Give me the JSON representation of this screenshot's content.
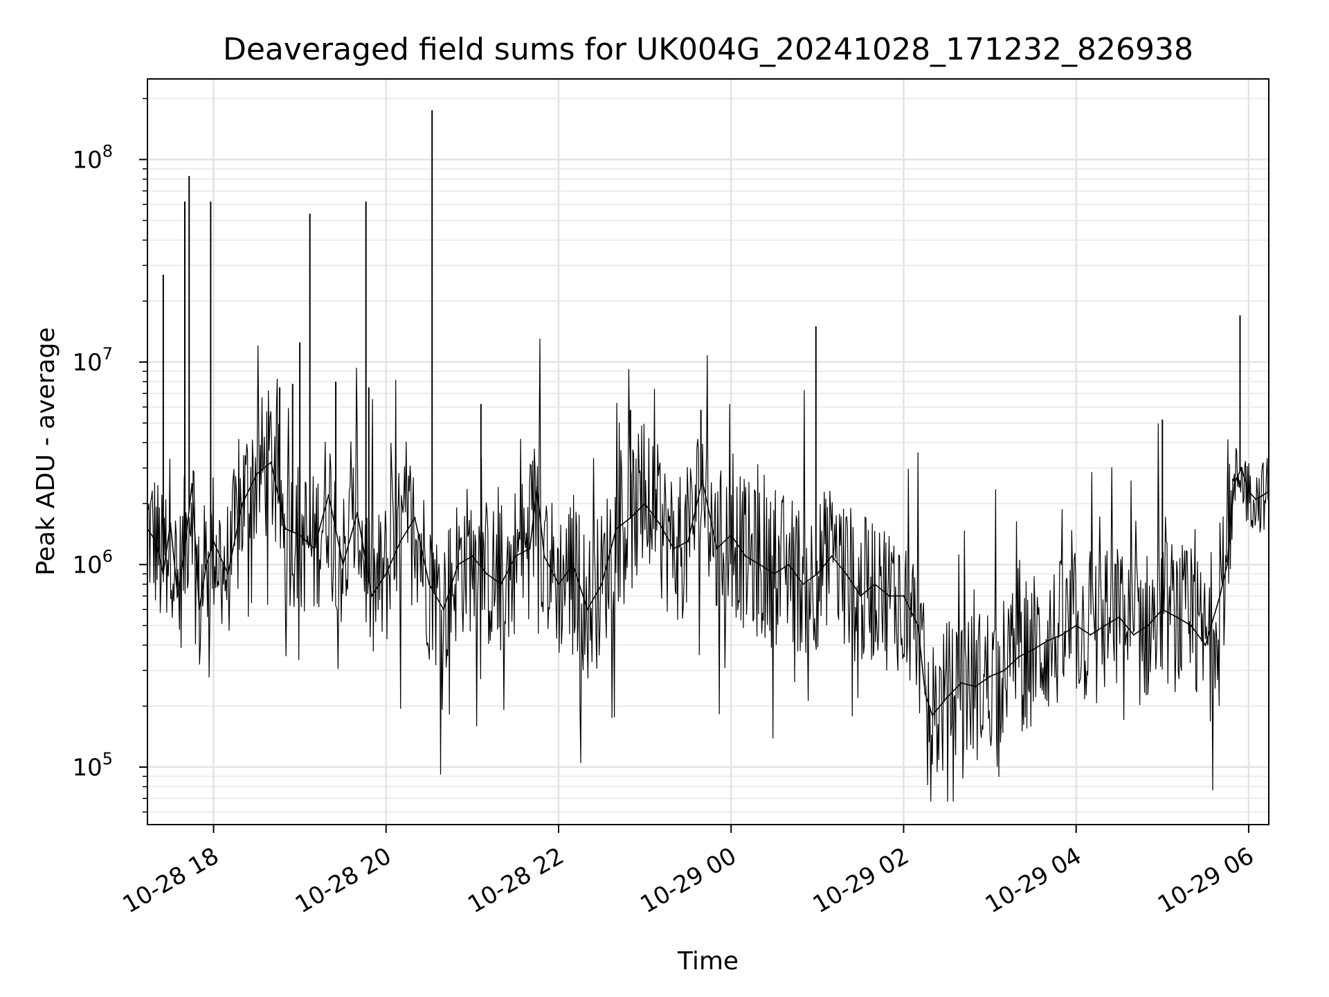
{
  "chart_data": {
    "type": "line",
    "title": "Deaveraged field sums for UK004G_20241028_171232_826938",
    "xlabel": "Time",
    "ylabel": "Peak ADU - average",
    "yscale": "log",
    "xlim": [
      "2024-10-28 17:14",
      "2024-10-29 06:14"
    ],
    "ylim": [
      52000,
      250000000
    ],
    "grid": true,
    "line_color": "#000000",
    "x_ticks": [
      {
        "t": "2024-10-28 18:00",
        "label": "10-28 18"
      },
      {
        "t": "2024-10-28 20:00",
        "label": "10-28 20"
      },
      {
        "t": "2024-10-28 22:00",
        "label": "10-28 22"
      },
      {
        "t": "2024-10-29 00:00",
        "label": "10-29 00"
      },
      {
        "t": "2024-10-29 02:00",
        "label": "10-29 02"
      },
      {
        "t": "2024-10-29 04:00",
        "label": "10-29 04"
      },
      {
        "t": "2024-10-29 06:00",
        "label": "10-29 06"
      }
    ],
    "y_ticks": [
      {
        "value": 100000,
        "base": "10",
        "exp": "5"
      },
      {
        "value": 1000000,
        "base": "10",
        "exp": "6"
      },
      {
        "value": 10000000,
        "base": "10",
        "exp": "7"
      },
      {
        "value": 100000000,
        "base": "10",
        "exp": "8"
      }
    ],
    "series": [
      {
        "points": [
          [
            "2024-10-28 17:14",
            1500000
          ],
          [
            "2024-10-28 17:20",
            1300000
          ],
          [
            "2024-10-28 17:25",
            900000
          ],
          [
            "2024-10-28 17:30",
            1600000
          ],
          [
            "2024-10-28 17:35",
            700000
          ],
          [
            "2024-10-28 17:40",
            1200000
          ],
          [
            "2024-10-28 17:45",
            2500000
          ],
          [
            "2024-10-28 17:50",
            600000
          ],
          [
            "2024-10-28 17:55",
            1000000
          ],
          [
            "2024-10-28 18:00",
            1300000
          ],
          [
            "2024-10-28 18:10",
            900000
          ],
          [
            "2024-10-28 18:20",
            2000000
          ],
          [
            "2024-10-28 18:30",
            2800000
          ],
          [
            "2024-10-28 18:40",
            3200000
          ],
          [
            "2024-10-28 18:50",
            1500000
          ],
          [
            "2024-10-28 19:00",
            1400000
          ],
          [
            "2024-10-28 19:10",
            1200000
          ],
          [
            "2024-10-28 19:20",
            2200000
          ],
          [
            "2024-10-28 19:30",
            1000000
          ],
          [
            "2024-10-28 19:40",
            1800000
          ],
          [
            "2024-10-28 19:50",
            700000
          ],
          [
            "2024-10-28 20:00",
            900000
          ],
          [
            "2024-10-28 20:10",
            1300000
          ],
          [
            "2024-10-28 20:20",
            1700000
          ],
          [
            "2024-10-28 20:30",
            800000
          ],
          [
            "2024-10-28 20:40",
            600000
          ],
          [
            "2024-10-28 20:50",
            1000000
          ],
          [
            "2024-10-28 21:00",
            1100000
          ],
          [
            "2024-10-28 21:10",
            900000
          ],
          [
            "2024-10-28 21:20",
            800000
          ],
          [
            "2024-10-28 21:30",
            1100000
          ],
          [
            "2024-10-28 21:40",
            1200000
          ],
          [
            "2024-10-28 21:45",
            2400000
          ],
          [
            "2024-10-28 21:50",
            1100000
          ],
          [
            "2024-10-28 22:00",
            800000
          ],
          [
            "2024-10-28 22:10",
            1000000
          ],
          [
            "2024-10-28 22:20",
            600000
          ],
          [
            "2024-10-28 22:30",
            800000
          ],
          [
            "2024-10-28 22:40",
            1500000
          ],
          [
            "2024-10-28 22:50",
            1700000
          ],
          [
            "2024-10-28 23:00",
            2000000
          ],
          [
            "2024-10-28 23:10",
            1600000
          ],
          [
            "2024-10-28 23:20",
            1200000
          ],
          [
            "2024-10-28 23:30",
            1300000
          ],
          [
            "2024-10-28 23:40",
            2600000
          ],
          [
            "2024-10-28 23:50",
            1200000
          ],
          [
            "2024-10-29 00:00",
            1400000
          ],
          [
            "2024-10-29 00:10",
            1100000
          ],
          [
            "2024-10-29 00:20",
            1000000
          ],
          [
            "2024-10-29 00:30",
            900000
          ],
          [
            "2024-10-29 00:40",
            1000000
          ],
          [
            "2024-10-29 00:50",
            800000
          ],
          [
            "2024-10-29 01:00",
            900000
          ],
          [
            "2024-10-29 01:10",
            1100000
          ],
          [
            "2024-10-29 01:20",
            900000
          ],
          [
            "2024-10-29 01:30",
            700000
          ],
          [
            "2024-10-29 01:40",
            800000
          ],
          [
            "2024-10-29 01:50",
            700000
          ],
          [
            "2024-10-29 02:00",
            700000
          ],
          [
            "2024-10-29 02:10",
            500000
          ],
          [
            "2024-10-29 02:15",
            230000
          ],
          [
            "2024-10-29 02:20",
            180000
          ],
          [
            "2024-10-29 02:30",
            220000
          ],
          [
            "2024-10-29 02:40",
            260000
          ],
          [
            "2024-10-29 02:50",
            250000
          ],
          [
            "2024-10-29 03:00",
            280000
          ],
          [
            "2024-10-29 03:10",
            300000
          ],
          [
            "2024-10-29 03:20",
            350000
          ],
          [
            "2024-10-29 03:30",
            380000
          ],
          [
            "2024-10-29 03:40",
            420000
          ],
          [
            "2024-10-29 03:50",
            450000
          ],
          [
            "2024-10-29 04:00",
            500000
          ],
          [
            "2024-10-29 04:10",
            450000
          ],
          [
            "2024-10-29 04:20",
            500000
          ],
          [
            "2024-10-29 04:30",
            550000
          ],
          [
            "2024-10-29 04:40",
            450000
          ],
          [
            "2024-10-29 04:50",
            500000
          ],
          [
            "2024-10-29 05:00",
            600000
          ],
          [
            "2024-10-29 05:10",
            550000
          ],
          [
            "2024-10-29 05:20",
            500000
          ],
          [
            "2024-10-29 05:30",
            400000
          ],
          [
            "2024-10-29 05:40",
            700000
          ],
          [
            "2024-10-29 05:45",
            1000000
          ],
          [
            "2024-10-29 05:50",
            2500000
          ],
          [
            "2024-10-29 05:55",
            3000000
          ],
          [
            "2024-10-29 06:00",
            2300000
          ],
          [
            "2024-10-29 06:05",
            2100000
          ],
          [
            "2024-10-29 06:10",
            2200000
          ],
          [
            "2024-10-29 06:14",
            2300000
          ]
        ]
      }
    ],
    "spikes": [
      [
        "2024-10-28 17:25",
        27000000
      ],
      [
        "2024-10-28 17:40",
        62000000
      ],
      [
        "2024-10-28 17:43",
        83000000
      ],
      [
        "2024-10-28 17:58",
        62000000
      ],
      [
        "2024-10-28 18:46",
        7500000
      ],
      [
        "2024-10-28 18:55",
        7800000
      ],
      [
        "2024-10-28 19:00",
        12500000
      ],
      [
        "2024-10-28 19:07",
        54000000
      ],
      [
        "2024-10-28 19:25",
        8000000
      ],
      [
        "2024-10-28 19:46",
        62000000
      ],
      [
        "2024-10-28 19:48",
        7500000
      ],
      [
        "2024-10-28 20:32",
        175000000
      ],
      [
        "2024-10-28 21:06",
        6200000
      ],
      [
        "2024-10-28 22:50",
        5800000
      ],
      [
        "2024-10-28 23:39",
        5800000
      ],
      [
        "2024-10-29 00:59",
        15000000
      ],
      [
        "2024-10-29 05:00",
        5200000
      ],
      [
        "2024-10-29 05:54",
        17000000
      ]
    ]
  }
}
